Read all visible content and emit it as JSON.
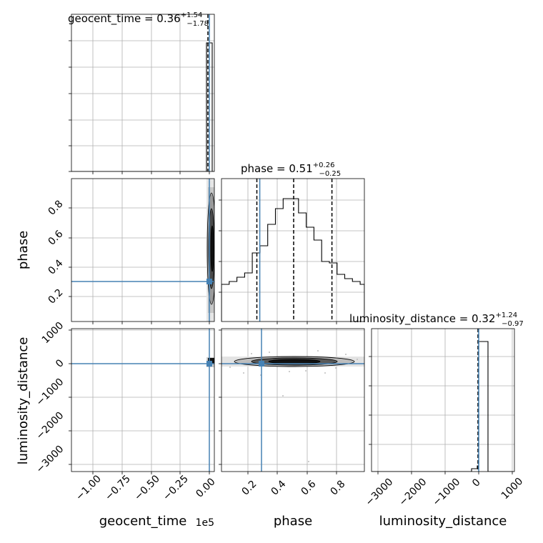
{
  "chart_data": [
    {
      "type": "histogram",
      "panel": "geocent_time-marginal",
      "title": "geocent_time = 0.36",
      "title_err_plus": "+1.54",
      "title_err_minus": "−1.78",
      "x_range": [
        -120000.0,
        8000.0
      ],
      "x_ticks": [
        -100000.0,
        -75000.0,
        -50000.0,
        -25000.0,
        0.0
      ],
      "quantiles": [
        -1.42,
        0.36,
        1.9
      ],
      "truth": 0.0,
      "grid": true
    },
    {
      "type": "histogram",
      "panel": "phase-marginal",
      "title": "phase = 0.51",
      "title_err_plus": "+0.26",
      "title_err_minus": "−0.25",
      "x_range": [
        0.02,
        0.99
      ],
      "bins": [
        0.02,
        0.0723,
        0.1246,
        0.1769,
        0.2292,
        0.2815,
        0.3338,
        0.3861,
        0.4384,
        0.4907,
        0.543,
        0.5953,
        0.6476,
        0.6999,
        0.7522,
        0.8045,
        0.8568,
        0.9091,
        0.9614,
        0.99
      ],
      "counts": [
        0.26,
        0.28,
        0.31,
        0.34,
        0.48,
        0.53,
        0.68,
        0.79,
        0.86,
        0.86,
        0.76,
        0.66,
        0.57,
        0.42,
        0.41,
        0.33,
        0.3,
        0.28,
        0.26
      ],
      "quantiles": [
        0.26,
        0.51,
        0.77
      ],
      "truth": 0.28,
      "grid": true
    },
    {
      "type": "histogram",
      "panel": "luminosity_distance-marginal",
      "title": "luminosity_distance = 0.32",
      "title_err_plus": "+1.24",
      "title_err_minus": "−0.97",
      "x_range": [
        -3200,
        1050
      ],
      "x_ticks": [
        -3000,
        -2000,
        -1000,
        0,
        1000
      ],
      "bins": [
        -120,
        -30,
        0,
        290
      ],
      "counts": [
        0.02,
        0.04,
        0.88
      ],
      "quantiles": [
        -0.65,
        0.32,
        1.56
      ],
      "truth": 0.0,
      "grid": true
    },
    {
      "type": "scatter",
      "panel": "phase-vs-geocent_time",
      "x": "geocent_time",
      "y": "phase",
      "x_range": [
        -120000.0,
        8000.0
      ],
      "y_range": [
        0.02,
        0.99
      ],
      "y_ticks": [
        0.2,
        0.4,
        0.6,
        0.8
      ],
      "truth": [
        0.0,
        0.28
      ],
      "grid": true
    },
    {
      "type": "scatter",
      "panel": "luminosity_distance-vs-geocent_time",
      "x": "geocent_time",
      "y": "luminosity_distance",
      "x_range": [
        -120000.0,
        8000.0
      ],
      "y_range": [
        -3200,
        1050
      ],
      "y_ticks": [
        -3000,
        -2000,
        -1000,
        0,
        1000
      ],
      "truth": [
        0.0,
        0.0
      ],
      "grid": true
    },
    {
      "type": "scatter",
      "panel": "luminosity_distance-vs-phase",
      "x": "phase",
      "y": "luminosity_distance",
      "x_range": [
        0.02,
        0.99
      ],
      "y_range": [
        -3200,
        1050
      ],
      "x_ticks": [
        0.2,
        0.4,
        0.6,
        0.8
      ],
      "truth": [
        0.28,
        0.0
      ],
      "grid": true
    }
  ],
  "labels": {
    "x_geocent_time": "geocent_time",
    "x_phase": "phase",
    "x_luminosity_distance": "luminosity_distance",
    "y_phase": "phase",
    "y_luminosity_distance": "luminosity_distance",
    "offset_text": "1e5"
  },
  "tick_labels": {
    "geocent_time": [
      "−1.00",
      "−0.75",
      "−0.50",
      "−0.25",
      "0.00"
    ],
    "phase": [
      "0.2",
      "0.4",
      "0.6",
      "0.8"
    ],
    "luminosity_distance": [
      "−3000",
      "−2000",
      "−1000",
      "0",
      "1000"
    ]
  },
  "colors": {
    "truth": "#4682b4",
    "hist": "#000000",
    "grid": "#b0b0b0",
    "background": "#ffffff"
  }
}
